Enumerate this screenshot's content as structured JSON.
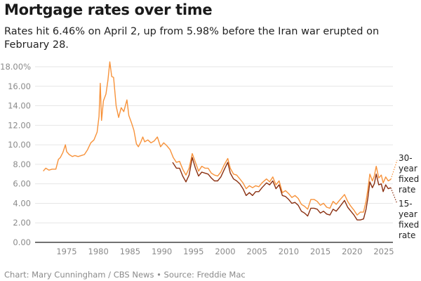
{
  "title": "Mortgage rates over time",
  "subtitle": "Rates hit 6.46% on April 2, up from 5.98% before the Iran war erupted on February 28.",
  "footer": "Chart: Mary Cunningham / CBS News • Source: Freddie Mac",
  "colors": {
    "thirty_year": "#f7923a",
    "fifteen_year": "#8a2f10",
    "grid": "#e6e6e6",
    "axis": "#444444"
  },
  "chart_data": {
    "type": "line",
    "title": "Mortgage rates over time",
    "xlabel": "",
    "ylabel": "",
    "xlim": [
      1971,
      2026.3
    ],
    "ylim": [
      0,
      18
    ],
    "grid": true,
    "y_ticks": [
      0,
      2,
      4,
      6,
      8,
      10,
      12,
      14,
      16,
      18
    ],
    "y_tick_labels": [
      "0.00",
      "2.00",
      "4.00",
      "6.00",
      "8.00",
      "10.00",
      "12.00",
      "14.00",
      "16.00",
      "18.00%"
    ],
    "x_ticks": [
      1975,
      1980,
      1985,
      1990,
      1995,
      2000,
      2005,
      2010,
      2015,
      2020,
      2025
    ],
    "x_tick_labels": [
      "1975",
      "1980",
      "1985",
      "1990",
      "1995",
      "2000",
      "2005",
      "2010",
      "2015",
      "2020",
      "2025"
    ],
    "series": [
      {
        "name": "30-year fixed rate",
        "label_lines": [
          "30-",
          "year",
          "fixed",
          "rate"
        ],
        "x": [
          1971.3,
          1971.7,
          1972.2,
          1972.7,
          1973.3,
          1973.7,
          1974.0,
          1974.4,
          1974.8,
          1975.0,
          1975.4,
          1975.9,
          1976.3,
          1976.8,
          1977.3,
          1977.8,
          1978.3,
          1978.8,
          1979.3,
          1979.8,
          1980.1,
          1980.3,
          1980.5,
          1980.8,
          1981.2,
          1981.5,
          1981.8,
          1982.1,
          1982.4,
          1982.8,
          1983.2,
          1983.6,
          1984.0,
          1984.5,
          1984.8,
          1985.2,
          1985.6,
          1986.0,
          1986.3,
          1986.7,
          1987.0,
          1987.3,
          1987.8,
          1988.3,
          1988.8,
          1989.3,
          1989.8,
          1990.3,
          1990.8,
          1991.3,
          1991.8,
          1992.3,
          1992.8,
          1993.3,
          1993.8,
          1994.3,
          1994.8,
          1995.3,
          1995.8,
          1996.3,
          1996.8,
          1997.3,
          1997.8,
          1998.3,
          1998.8,
          1999.3,
          1999.8,
          2000.4,
          2000.8,
          2001.3,
          2001.8,
          2002.3,
          2002.8,
          2003.3,
          2003.8,
          2004.3,
          2004.8,
          2005.3,
          2005.8,
          2006.5,
          2007.0,
          2007.5,
          2008.0,
          2008.5,
          2009.0,
          2009.5,
          2010.0,
          2010.5,
          2011.0,
          2011.5,
          2012.0,
          2012.5,
          2013.0,
          2013.5,
          2014.0,
          2014.5,
          2015.0,
          2015.5,
          2016.0,
          2016.5,
          2017.0,
          2017.5,
          2018.0,
          2018.8,
          2019.3,
          2019.8,
          2020.3,
          2020.8,
          2021.3,
          2021.8,
          2022.2,
          2022.5,
          2022.8,
          2023.2,
          2023.5,
          2023.8,
          2024.2,
          2024.6,
          2024.9,
          2025.3,
          2025.7,
          2026.1
        ],
        "values": [
          7.3,
          7.6,
          7.4,
          7.5,
          7.5,
          8.5,
          8.7,
          9.2,
          10.0,
          9.3,
          9.0,
          8.8,
          8.9,
          8.8,
          8.9,
          9.0,
          9.5,
          10.2,
          10.5,
          11.3,
          12.9,
          16.3,
          12.5,
          14.5,
          15.2,
          16.6,
          18.5,
          17.0,
          16.9,
          14.0,
          12.8,
          13.8,
          13.4,
          14.6,
          13.0,
          12.3,
          11.5,
          10.1,
          9.8,
          10.3,
          10.8,
          10.3,
          10.5,
          10.2,
          10.4,
          10.8,
          9.8,
          10.2,
          9.9,
          9.5,
          8.7,
          8.2,
          8.3,
          7.5,
          6.9,
          7.6,
          9.1,
          8.2,
          7.3,
          7.8,
          7.6,
          7.6,
          7.1,
          6.9,
          6.8,
          7.2,
          7.9,
          8.6,
          7.6,
          7.0,
          6.9,
          6.5,
          6.1,
          5.5,
          5.8,
          5.6,
          5.8,
          5.7,
          6.1,
          6.5,
          6.2,
          6.7,
          5.9,
          6.3,
          5.1,
          5.3,
          5.0,
          4.6,
          4.8,
          4.5,
          3.9,
          3.7,
          3.4,
          4.4,
          4.4,
          4.2,
          3.8,
          4.0,
          3.6,
          3.5,
          4.2,
          3.9,
          4.3,
          4.9,
          4.2,
          3.7,
          3.3,
          2.8,
          3.1,
          3.1,
          4.2,
          5.5,
          7.0,
          6.3,
          6.8,
          7.8,
          6.6,
          6.9,
          6.1,
          6.7,
          6.3,
          6.46
        ]
      },
      {
        "name": "15-year fixed rate",
        "label_lines": [
          "15-",
          "year",
          "fixed",
          "rate"
        ],
        "x": [
          1991.7,
          1992.3,
          1992.8,
          1993.3,
          1993.8,
          1994.3,
          1994.8,
          1995.3,
          1995.8,
          1996.3,
          1996.8,
          1997.3,
          1997.8,
          1998.3,
          1998.8,
          1999.3,
          1999.8,
          2000.4,
          2000.8,
          2001.3,
          2001.8,
          2002.3,
          2002.8,
          2003.3,
          2003.8,
          2004.3,
          2004.8,
          2005.3,
          2005.8,
          2006.5,
          2007.0,
          2007.5,
          2008.0,
          2008.5,
          2009.0,
          2009.5,
          2010.0,
          2010.5,
          2011.0,
          2011.5,
          2012.0,
          2012.5,
          2013.0,
          2013.5,
          2014.0,
          2014.5,
          2015.0,
          2015.5,
          2016.0,
          2016.5,
          2017.0,
          2017.5,
          2018.0,
          2018.8,
          2019.3,
          2019.8,
          2020.3,
          2020.8,
          2021.3,
          2021.8,
          2022.2,
          2022.5,
          2022.8,
          2023.2,
          2023.5,
          2023.8,
          2024.2,
          2024.6,
          2024.9,
          2025.3,
          2025.7,
          2026.1
        ],
        "values": [
          8.2,
          7.6,
          7.6,
          6.8,
          6.2,
          6.9,
          8.7,
          7.6,
          6.8,
          7.2,
          7.1,
          7.0,
          6.6,
          6.3,
          6.3,
          6.7,
          7.4,
          8.2,
          7.1,
          6.5,
          6.3,
          6.0,
          5.5,
          4.8,
          5.1,
          4.8,
          5.2,
          5.2,
          5.6,
          6.1,
          5.9,
          6.3,
          5.5,
          5.9,
          4.8,
          4.7,
          4.4,
          4.0,
          4.1,
          3.8,
          3.2,
          3.0,
          2.7,
          3.5,
          3.5,
          3.4,
          3.0,
          3.2,
          2.9,
          2.8,
          3.4,
          3.2,
          3.6,
          4.3,
          3.6,
          3.2,
          2.8,
          2.3,
          2.3,
          2.4,
          3.4,
          4.6,
          6.2,
          5.6,
          6.0,
          7.0,
          5.9,
          6.0,
          5.2,
          5.9,
          5.5,
          5.6
        ]
      }
    ],
    "projection_note": "dotted extensions from last points to series labels"
  }
}
